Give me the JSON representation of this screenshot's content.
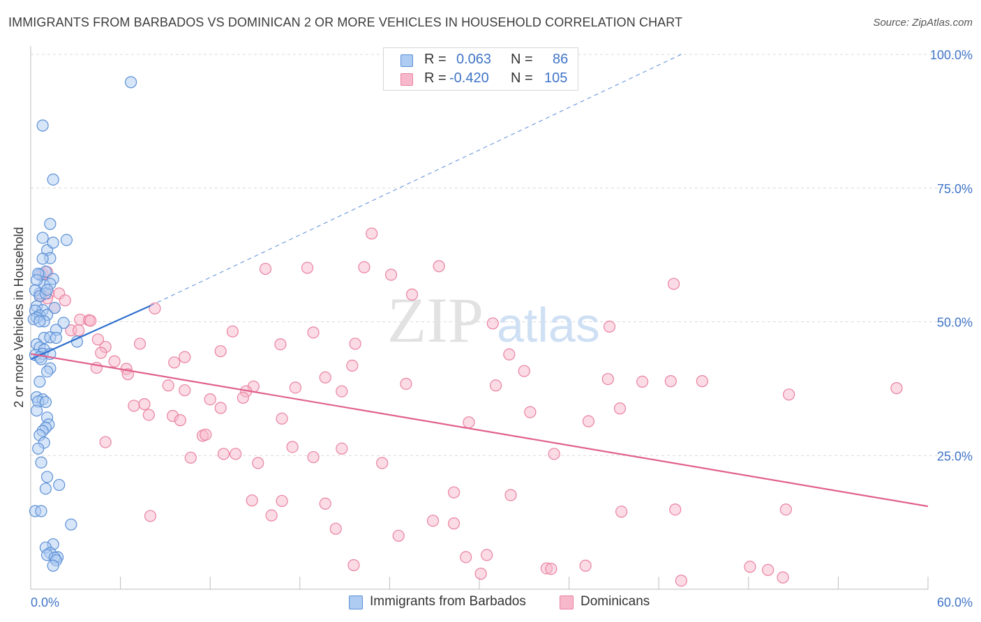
{
  "title": "IMMIGRANTS FROM BARBADOS VS DOMINICAN 2 OR MORE VEHICLES IN HOUSEHOLD CORRELATION CHART",
  "source": "Source: ZipAtlas.com",
  "watermark": {
    "zip": "ZIP",
    "atlas": "atlas"
  },
  "colors": {
    "blue_fill": "#aecbf2",
    "blue_stroke": "#5b8fd6",
    "blue_line": "#2f6fcf",
    "pink_fill": "#f7b8cc",
    "pink_stroke": "#e9819f",
    "pink_line": "#e0608d",
    "value_text": "#3f74c8",
    "grid": "#d9d9d9"
  },
  "stats_legend": {
    "rows": [
      {
        "r_label": "R =",
        "r_value": "0.063",
        "n_label": "N =",
        "n_value": "86",
        "series": "blue"
      },
      {
        "r_label": "R =",
        "r_value": "-0.420",
        "n_label": "N =",
        "n_value": "105",
        "series": "pink"
      }
    ]
  },
  "bottom_legend": [
    {
      "label": "Immigrants from Barbados",
      "series": "blue"
    },
    {
      "label": "Dominicans",
      "series": "pink"
    }
  ],
  "chart_data": {
    "type": "scatter",
    "title": "IMMIGRANTS FROM BARBADOS VS DOMINICAN 2 OR MORE VEHICLES IN HOUSEHOLD CORRELATION CHART",
    "xlabel": "",
    "ylabel": "2 or more Vehicles in Household",
    "xlim": [
      0,
      60
    ],
    "ylim": [
      0,
      100
    ],
    "x_tick_labels": [
      {
        "value": 0,
        "label": "0.0%"
      },
      {
        "value": 60,
        "label": "60.0%"
      }
    ],
    "y_tick_labels": [
      {
        "value": 100,
        "label": "100.0%"
      },
      {
        "value": 75,
        "label": "75.0%"
      },
      {
        "value": 50,
        "label": "50.0%"
      },
      {
        "value": 25,
        "label": "25.0%"
      }
    ],
    "y_gridlines": [
      100,
      75,
      50,
      25
    ],
    "series": [
      {
        "name": "Immigrants from Barbados",
        "color": "blue",
        "R": 0.063,
        "N": 86,
        "trend": {
          "x0": 0,
          "y0": 43,
          "x1": 8,
          "y1": 53,
          "dashed_to": {
            "x": 43.5,
            "y": 100
          }
        },
        "points": [
          [
            6.7,
            94.8
          ],
          [
            0.8,
            86.7
          ],
          [
            1.5,
            76.6
          ],
          [
            1.3,
            68.3
          ],
          [
            2.4,
            65.3
          ],
          [
            0.8,
            65.7
          ],
          [
            1.1,
            63.4
          ],
          [
            1.5,
            64.8
          ],
          [
            1.3,
            61.9
          ],
          [
            0.8,
            61.8
          ],
          [
            0.6,
            58.8
          ],
          [
            1.0,
            59.4
          ],
          [
            0.5,
            59.0
          ],
          [
            1.5,
            58.0
          ],
          [
            0.9,
            56.8
          ],
          [
            1.3,
            57.1
          ],
          [
            0.4,
            57.8
          ],
          [
            0.6,
            55.3
          ],
          [
            0.3,
            55.9
          ],
          [
            0.6,
            54.8
          ],
          [
            1.0,
            55.3
          ],
          [
            1.1,
            56.0
          ],
          [
            0.4,
            52.9
          ],
          [
            1.6,
            52.6
          ],
          [
            0.8,
            52.2
          ],
          [
            0.3,
            52.1
          ],
          [
            0.6,
            51.2
          ],
          [
            1.1,
            51.3
          ],
          [
            0.4,
            50.8
          ],
          [
            0.2,
            50.5
          ],
          [
            0.9,
            50.1
          ],
          [
            0.6,
            50.1
          ],
          [
            2.2,
            49.8
          ],
          [
            1.7,
            48.5
          ],
          [
            0.9,
            47.0
          ],
          [
            1.3,
            47.1
          ],
          [
            1.7,
            47.0
          ],
          [
            3.1,
            46.3
          ],
          [
            0.4,
            45.8
          ],
          [
            0.6,
            45.2
          ],
          [
            0.9,
            44.8
          ],
          [
            0.8,
            44.0
          ],
          [
            1.3,
            44.0
          ],
          [
            0.3,
            43.8
          ],
          [
            0.6,
            43.4
          ],
          [
            0.7,
            43.0
          ],
          [
            1.3,
            41.3
          ],
          [
            1.1,
            40.7
          ],
          [
            0.6,
            38.8
          ],
          [
            0.4,
            35.9
          ],
          [
            0.8,
            35.5
          ],
          [
            0.5,
            35.1
          ],
          [
            1.0,
            35.0
          ],
          [
            0.4,
            33.4
          ],
          [
            1.1,
            32.1
          ],
          [
            1.2,
            30.8
          ],
          [
            1.0,
            30.2
          ],
          [
            0.8,
            29.6
          ],
          [
            0.6,
            28.8
          ],
          [
            0.9,
            27.4
          ],
          [
            0.5,
            26.3
          ],
          [
            0.7,
            23.7
          ],
          [
            1.1,
            21.0
          ],
          [
            1.9,
            19.5
          ],
          [
            1.0,
            18.8
          ],
          [
            0.3,
            14.6
          ],
          [
            0.7,
            14.6
          ],
          [
            2.7,
            12.1
          ],
          [
            1.5,
            8.4
          ],
          [
            1.0,
            7.8
          ],
          [
            1.3,
            6.8
          ],
          [
            1.1,
            6.4
          ],
          [
            1.8,
            6.0
          ],
          [
            1.6,
            5.9
          ],
          [
            1.7,
            5.4
          ],
          [
            1.5,
            4.4
          ]
        ]
      },
      {
        "name": "Dominicans",
        "color": "pink",
        "R": -0.42,
        "N": 105,
        "trend": {
          "x0": 0,
          "y0": 44,
          "x1": 60,
          "y1": 15.5
        },
        "points": [
          [
            22.8,
            66.5
          ],
          [
            15.7,
            59.9
          ],
          [
            18.5,
            60.1
          ],
          [
            22.3,
            60.2
          ],
          [
            24.1,
            58.8
          ],
          [
            27.3,
            60.4
          ],
          [
            43.0,
            57.1
          ],
          [
            0.8,
            58.9
          ],
          [
            1.1,
            59.3
          ],
          [
            1.2,
            55.3
          ],
          [
            1.9,
            55.3
          ],
          [
            0.7,
            54.8
          ],
          [
            1.1,
            54.4
          ],
          [
            2.3,
            54.0
          ],
          [
            25.5,
            55.1
          ],
          [
            1.6,
            52.6
          ],
          [
            8.3,
            52.5
          ],
          [
            3.3,
            50.4
          ],
          [
            3.9,
            50.3
          ],
          [
            4.0,
            50.2
          ],
          [
            30.9,
            49.7
          ],
          [
            38.7,
            49.1
          ],
          [
            13.5,
            48.2
          ],
          [
            18.9,
            48.0
          ],
          [
            2.7,
            48.4
          ],
          [
            3.2,
            48.4
          ],
          [
            4.5,
            46.7
          ],
          [
            7.3,
            45.9
          ],
          [
            16.7,
            45.8
          ],
          [
            21.7,
            45.9
          ],
          [
            5.0,
            45.3
          ],
          [
            12.7,
            44.5
          ],
          [
            4.7,
            44.2
          ],
          [
            32.0,
            43.9
          ],
          [
            10.3,
            43.4
          ],
          [
            5.6,
            42.6
          ],
          [
            9.6,
            42.4
          ],
          [
            21.5,
            41.8
          ],
          [
            4.4,
            41.4
          ],
          [
            6.4,
            41.2
          ],
          [
            33.0,
            40.8
          ],
          [
            6.5,
            40.2
          ],
          [
            19.7,
            39.6
          ],
          [
            38.6,
            39.3
          ],
          [
            40.9,
            38.8
          ],
          [
            42.8,
            38.9
          ],
          [
            44.9,
            38.9
          ],
          [
            25.1,
            38.4
          ],
          [
            31.1,
            38.1
          ],
          [
            9.2,
            38.1
          ],
          [
            14.9,
            37.9
          ],
          [
            17.7,
            37.7
          ],
          [
            10.3,
            37.2
          ],
          [
            14.4,
            37.0
          ],
          [
            20.8,
            37.0
          ],
          [
            50.7,
            36.4
          ],
          [
            57.9,
            37.6
          ],
          [
            14.2,
            35.8
          ],
          [
            12.0,
            35.5
          ],
          [
            7.6,
            34.6
          ],
          [
            6.9,
            34.3
          ],
          [
            12.7,
            33.9
          ],
          [
            39.4,
            33.8
          ],
          [
            33.4,
            33.1
          ],
          [
            7.9,
            32.6
          ],
          [
            9.5,
            32.4
          ],
          [
            10.0,
            31.6
          ],
          [
            16.8,
            31.9
          ],
          [
            29.3,
            31.2
          ],
          [
            37.3,
            31.4
          ],
          [
            11.5,
            28.7
          ],
          [
            11.7,
            28.9
          ],
          [
            5.0,
            27.5
          ],
          [
            17.5,
            26.6
          ],
          [
            20.8,
            26.3
          ],
          [
            12.9,
            25.3
          ],
          [
            13.7,
            25.3
          ],
          [
            35.0,
            25.3
          ],
          [
            10.7,
            24.6
          ],
          [
            18.9,
            24.7
          ],
          [
            15.2,
            23.6
          ],
          [
            23.5,
            23.6
          ],
          [
            28.3,
            18.1
          ],
          [
            32.1,
            17.6
          ],
          [
            14.8,
            16.6
          ],
          [
            16.8,
            16.5
          ],
          [
            19.7,
            16.0
          ],
          [
            39.5,
            14.5
          ],
          [
            43.1,
            14.9
          ],
          [
            50.5,
            14.9
          ],
          [
            8.0,
            13.7
          ],
          [
            16.1,
            13.8
          ],
          [
            26.9,
            12.8
          ],
          [
            28.3,
            12.3
          ],
          [
            20.4,
            11.3
          ],
          [
            24.6,
            10.0
          ],
          [
            29.1,
            6.0
          ],
          [
            30.5,
            6.4
          ],
          [
            21.6,
            4.5
          ],
          [
            37.1,
            4.4
          ],
          [
            34.5,
            3.9
          ],
          [
            34.8,
            3.8
          ],
          [
            30.1,
            2.9
          ],
          [
            48.1,
            4.2
          ],
          [
            49.3,
            3.6
          ],
          [
            43.5,
            1.6
          ],
          [
            50.3,
            2.2
          ]
        ]
      }
    ]
  }
}
